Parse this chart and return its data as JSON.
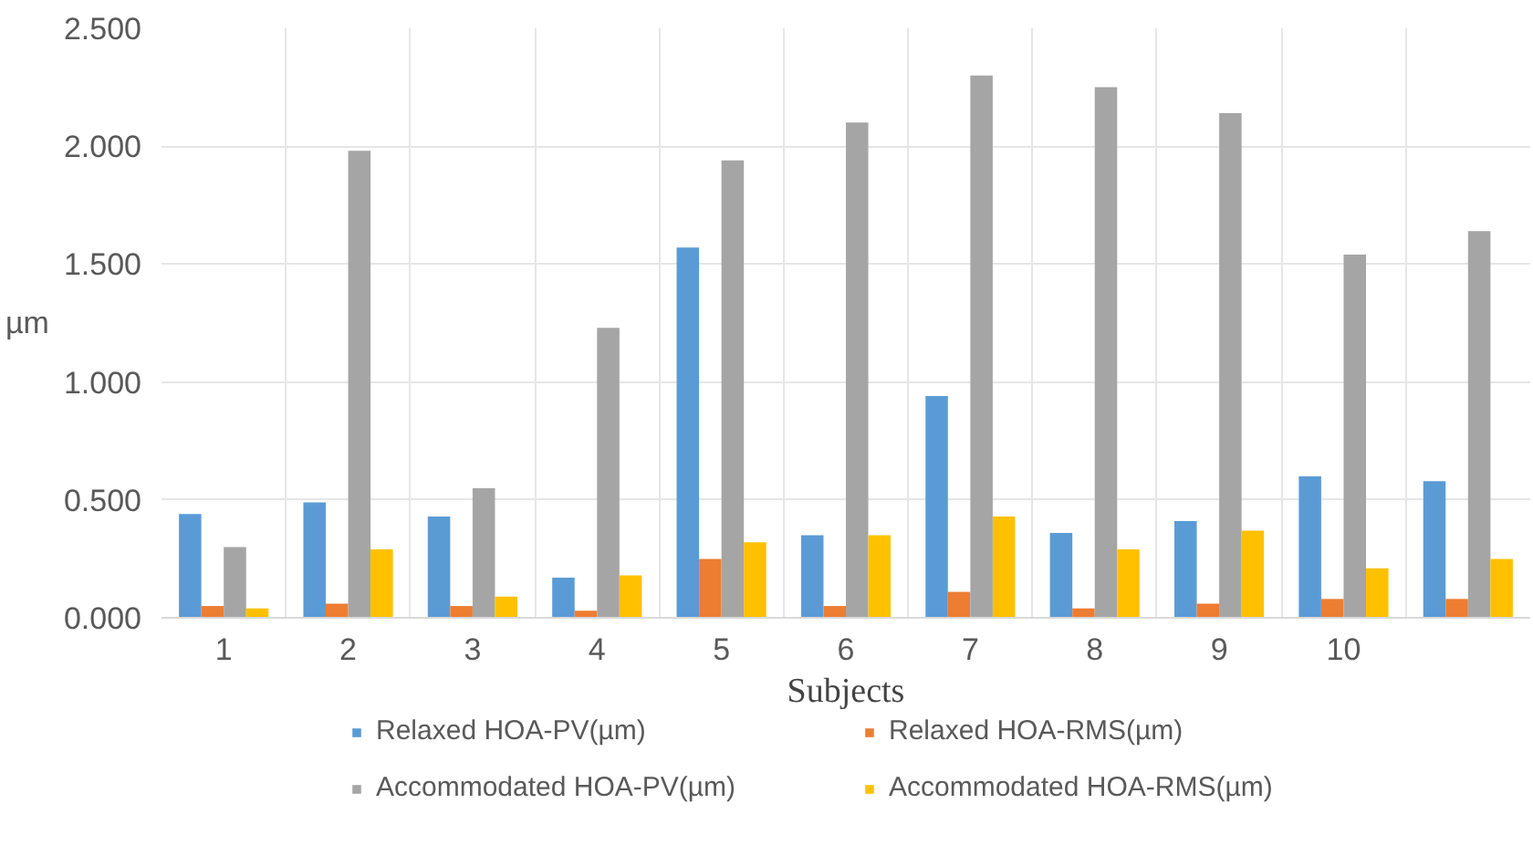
{
  "chart_data": {
    "type": "bar",
    "xlabel": "Subjects",
    "ylabel": "µm",
    "categories": [
      "1",
      "2",
      "3",
      "4",
      "5",
      "6",
      "7",
      "8",
      "9",
      "10",
      null
    ],
    "series": [
      {
        "name": "Relaxed HOA-PV(µm)",
        "color": "#5b9bd5",
        "values": [
          0.44,
          0.49,
          0.43,
          0.17,
          1.57,
          0.35,
          0.94,
          0.36,
          0.41,
          0.6,
          0.58
        ]
      },
      {
        "name": "Relaxed HOA-RMS(µm)",
        "color": "#ed7d31",
        "values": [
          0.05,
          0.06,
          0.05,
          0.03,
          0.25,
          0.05,
          0.11,
          0.04,
          0.06,
          0.08,
          0.08
        ]
      },
      {
        "name": "Accommodated HOA-PV(µm)",
        "color": "#a5a5a5",
        "values": [
          0.3,
          1.98,
          0.55,
          1.23,
          1.94,
          2.1,
          2.3,
          2.25,
          2.14,
          1.54,
          1.64
        ]
      },
      {
        "name": "Accommodated HOA-RMS(µm)",
        "color": "#ffc000",
        "values": [
          0.04,
          0.29,
          0.09,
          0.18,
          0.32,
          0.35,
          0.43,
          0.29,
          0.37,
          0.21,
          0.25
        ]
      }
    ],
    "ylim": [
      0,
      2.5
    ],
    "yticks": [
      {
        "value": 0,
        "label": "0.000"
      },
      {
        "value": 0.5,
        "label": "0.500"
      },
      {
        "value": 1.0,
        "label": "1.000"
      },
      {
        "value": 1.5,
        "label": "1.500"
      },
      {
        "value": 2.0,
        "label": "2.000"
      },
      {
        "value": 2.5,
        "label": "2.500"
      }
    ],
    "grid": true,
    "legend": "bottom"
  }
}
